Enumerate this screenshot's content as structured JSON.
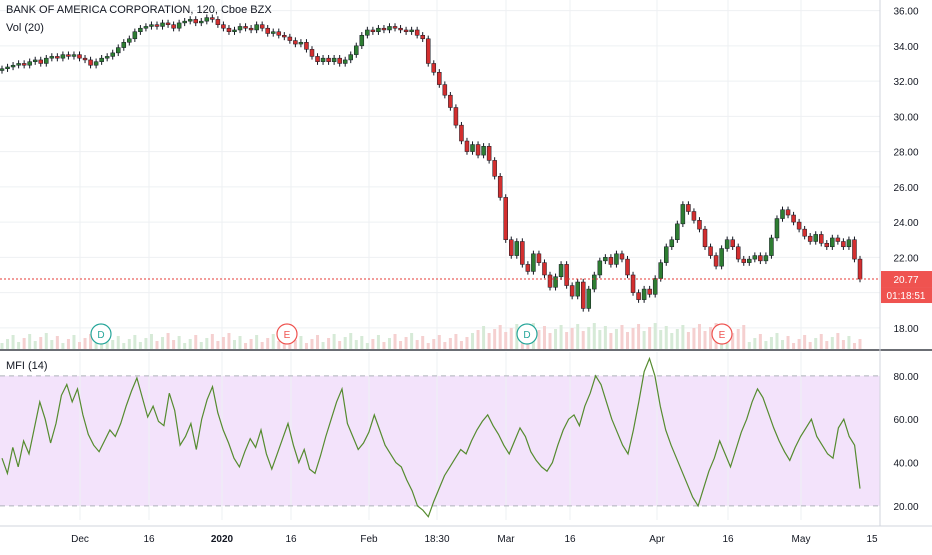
{
  "chart_data": [
    {
      "type": "line",
      "title": "BANK OF AMERICA CORPORATION, 120, Cboe BZX",
      "volume_label": "Vol (20)",
      "ylim": [
        16.8,
        36.6
      ],
      "yticks": [
        "36.00",
        "34.00",
        "32.00",
        "30.00",
        "28.00",
        "26.00",
        "24.00",
        "22.00",
        "20.00",
        "18.00"
      ],
      "x_labels": [
        "Dec",
        "16",
        "2020",
        "16",
        "Feb",
        "18:30",
        "Mar",
        "16",
        "Apr",
        "16",
        "May",
        "15"
      ],
      "last_price": "20.77",
      "countdown": "01:18:51",
      "markers": [
        "D",
        "E",
        "D",
        "E"
      ],
      "series": [
        {
          "values": [
            32.7,
            32.8,
            32.9,
            33.0,
            32.9,
            33.1,
            33.2,
            33.0,
            33.3,
            33.4,
            33.3,
            33.5,
            33.4,
            33.5,
            33.3,
            33.2,
            32.9,
            33.1,
            33.3,
            33.4,
            33.6,
            33.9,
            34.2,
            34.4,
            34.8,
            35.0,
            35.1,
            35.2,
            35.1,
            35.3,
            35.2,
            35.0,
            35.3,
            35.4,
            35.5,
            35.3,
            35.4,
            35.6,
            35.5,
            35.2,
            35.0,
            34.8,
            34.9,
            35.1,
            35.0,
            34.9,
            35.2,
            35.0,
            34.7,
            34.8,
            34.6,
            34.5,
            34.3,
            34.1,
            34.2,
            33.8,
            33.4,
            33.1,
            33.3,
            33.1,
            33.3,
            33.0,
            33.2,
            33.5,
            34.0,
            34.6,
            34.9,
            34.8,
            35.0,
            34.9,
            35.1,
            35.0,
            34.9,
            34.8,
            34.9,
            34.6,
            34.4,
            33.0,
            32.5,
            31.8,
            31.2,
            30.5,
            29.5,
            28.6,
            28.0,
            28.4,
            27.8,
            28.3,
            27.5,
            26.6,
            25.4,
            23.0,
            22.1,
            22.9,
            21.6,
            21.2,
            22.2,
            21.7,
            21.0,
            20.3,
            20.9,
            21.6,
            20.4,
            19.8,
            20.6,
            19.1,
            20.2,
            21.0,
            21.8,
            22.0,
            21.6,
            22.2,
            21.9,
            21.0,
            20.0,
            19.6,
            20.2,
            19.9,
            20.8,
            21.7,
            22.6,
            23.0,
            23.9,
            25.0,
            24.6,
            24.1,
            23.6,
            22.6,
            22.1,
            21.5,
            22.5,
            23.0,
            22.6,
            21.9,
            21.7,
            21.9,
            22.1,
            21.8,
            22.1,
            23.1,
            24.2,
            24.7,
            24.4,
            24.0,
            23.6,
            23.2,
            22.9,
            23.3,
            22.8,
            22.6,
            23.1,
            22.9,
            22.6,
            23.0,
            21.9,
            20.77
          ]
        }
      ]
    },
    {
      "type": "line",
      "title": "MFI (14)",
      "ylim": [
        13.5,
        91
      ],
      "yticks": [
        "80.00",
        "60.00",
        "40.00",
        "20.00"
      ],
      "bands": [
        20,
        80
      ],
      "series": [
        {
          "values": [
            42,
            35,
            47,
            38,
            50,
            44,
            56,
            68,
            60,
            49,
            58,
            71,
            76,
            68,
            74,
            62,
            53,
            48,
            45,
            50,
            55,
            52,
            58,
            66,
            73,
            79,
            70,
            61,
            66,
            59,
            57,
            72,
            64,
            48,
            52,
            58,
            46,
            60,
            69,
            75,
            63,
            55,
            49,
            42,
            38,
            45,
            51,
            47,
            55,
            44,
            37,
            44,
            51,
            58,
            48,
            40,
            46,
            37,
            35,
            43,
            52,
            60,
            68,
            74,
            58,
            52,
            46,
            49,
            54,
            62,
            55,
            48,
            44,
            40,
            38,
            32,
            27,
            20,
            18,
            15,
            22,
            28,
            34,
            38,
            42,
            46,
            44,
            50,
            55,
            59,
            62,
            57,
            53,
            48,
            44,
            50,
            56,
            52,
            45,
            41,
            38,
            36,
            40,
            48,
            55,
            60,
            62,
            57,
            66,
            72,
            80,
            76,
            68,
            60,
            54,
            48,
            44,
            55,
            68,
            82,
            88,
            80,
            66,
            55,
            48,
            42,
            36,
            30,
            24,
            20,
            28,
            36,
            42,
            50,
            44,
            38,
            46,
            54,
            60,
            68,
            74,
            70,
            63,
            56,
            50,
            45,
            41,
            47,
            52,
            56,
            60,
            52,
            48,
            44,
            42,
            56,
            60,
            52,
            48,
            28
          ]
        }
      ]
    }
  ]
}
